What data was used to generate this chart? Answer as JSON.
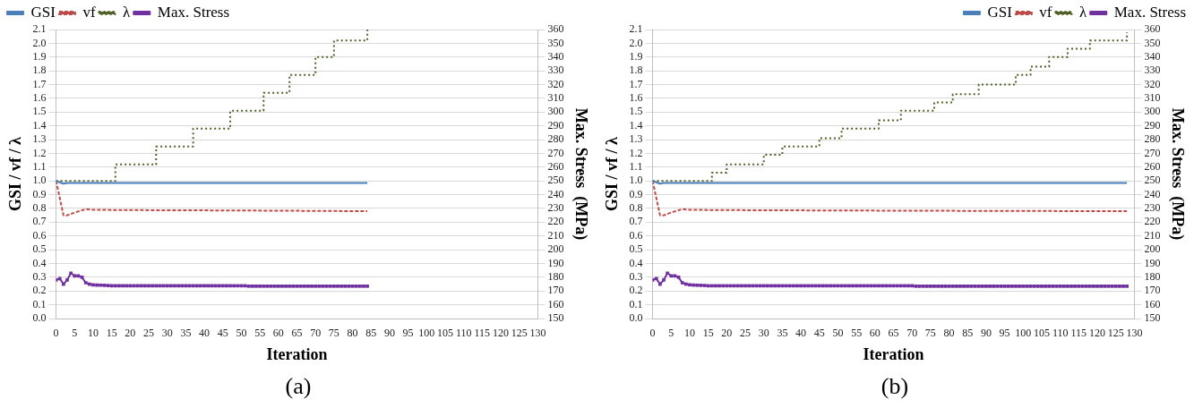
{
  "chart_data": [
    {
      "type": "line",
      "xlabel": "Iteration",
      "ylabel": "GSI / vf / λ",
      "y2label": "Max. Stress  (MPa)",
      "annotations": [
        "(a)"
      ],
      "xlim": [
        0,
        130
      ],
      "xticks": [
        0,
        5,
        10,
        15,
        20,
        25,
        30,
        35,
        40,
        45,
        50,
        55,
        60,
        65,
        70,
        75,
        80,
        85,
        90,
        95,
        100,
        105,
        110,
        115,
        120,
        125,
        130
      ],
      "ylim": [
        0,
        2.1
      ],
      "yticks": [
        {
          "value": 0,
          "label": "0.0"
        },
        0.1,
        0.2,
        0.3,
        0.4,
        0.5,
        0.6,
        0.7,
        0.8,
        0.9,
        {
          "value": 1,
          "label": "1.0"
        },
        1.1,
        1.2,
        1.3,
        1.4,
        1.5,
        1.6,
        1.7,
        1.8,
        1.9,
        {
          "value": 2,
          "label": "2.0"
        },
        2.1
      ],
      "y2lim": [
        150,
        360
      ],
      "y2ticks": [
        150,
        160,
        170,
        180,
        190,
        200,
        210,
        220,
        230,
        240,
        250,
        260,
        270,
        280,
        290,
        300,
        310,
        320,
        330,
        340,
        350,
        360
      ],
      "grid": "y",
      "legend": "top left",
      "series": [
        {
          "name": "GSI",
          "color": "#4a7ebb",
          "line_style": "solid",
          "marker": "none",
          "x": [
            0,
            1,
            2,
            3,
            84
          ],
          "values": [
            1.0,
            0.99,
            0.98,
            0.985,
            0.985
          ]
        },
        {
          "name": "vf",
          "color": "#be4b48",
          "line_style": "dashed",
          "marker": "none",
          "x": [
            0,
            2,
            3,
            5,
            8,
            10,
            20,
            50,
            84
          ],
          "values": [
            1.0,
            0.75,
            0.75,
            0.77,
            0.795,
            0.79,
            0.788,
            0.785,
            0.78
          ]
        },
        {
          "name": "λ",
          "type": "step",
          "color": "#4f6228",
          "line_style": "dotted",
          "marker": "none",
          "x": [
            0,
            16,
            27,
            37,
            47,
            56,
            63,
            70,
            75,
            84
          ],
          "values": [
            1.0,
            1.12,
            1.25,
            1.38,
            1.51,
            1.64,
            1.77,
            1.9,
            2.02,
            2.1
          ]
        },
        {
          "name": "Max. Stress",
          "axis": "y2",
          "color": "#7030a0",
          "line_style": "solid",
          "marker": "square",
          "x": [
            0,
            1,
            2,
            3,
            4,
            5,
            6,
            7,
            8,
            9,
            10,
            11,
            12,
            13,
            14,
            15,
            16,
            17,
            18,
            19,
            20,
            21,
            22,
            23,
            24,
            25,
            26,
            27,
            28,
            29,
            30,
            31,
            32,
            33,
            34,
            35,
            36,
            37,
            38,
            39,
            40,
            41,
            42,
            43,
            44,
            45,
            46,
            47,
            48,
            49,
            50,
            51,
            52,
            53,
            54,
            55,
            56,
            57,
            58,
            59,
            60,
            61,
            62,
            63,
            64,
            65,
            66,
            67,
            68,
            69,
            70,
            71,
            72,
            73,
            74,
            75,
            76,
            77,
            78,
            79,
            80,
            81,
            82,
            83,
            84
          ],
          "values": [
            178,
            179,
            175,
            178,
            183,
            181,
            181,
            180,
            176,
            175,
            174.5,
            174.3,
            174.2,
            174.1,
            174,
            173.8,
            173.8,
            173.8,
            173.8,
            173.8,
            173.8,
            173.8,
            173.8,
            173.8,
            173.8,
            173.8,
            173.8,
            173.8,
            173.8,
            173.8,
            173.8,
            173.8,
            173.8,
            173.8,
            173.8,
            173.8,
            173.8,
            173.8,
            173.8,
            173.8,
            173.8,
            173.8,
            173.8,
            173.8,
            173.8,
            173.8,
            173.8,
            173.8,
            173.8,
            173.8,
            173.8,
            173.8,
            173.5,
            173.5,
            173.5,
            173.5,
            173.5,
            173.5,
            173.5,
            173.5,
            173.5,
            173.5,
            173.5,
            173.5,
            173.5,
            173.5,
            173.5,
            173.5,
            173.5,
            173.5,
            173.5,
            173.5,
            173.5,
            173.5,
            173.5,
            173.5,
            173.5,
            173.5,
            173.5,
            173.5,
            173.5,
            173.5,
            173.5,
            173.5,
            173.5
          ]
        }
      ]
    },
    {
      "type": "line",
      "xlabel": "Iteration",
      "ylabel": "GSI / vf / λ",
      "y2label": "Max. Stress  (MPa)",
      "annotations": [
        "(b)"
      ],
      "xlim": [
        0,
        130
      ],
      "xticks": [
        0,
        5,
        10,
        15,
        20,
        25,
        30,
        35,
        40,
        45,
        50,
        55,
        60,
        65,
        70,
        75,
        80,
        85,
        90,
        95,
        100,
        105,
        110,
        115,
        120,
        125,
        130
      ],
      "ylim": [
        0,
        2.1
      ],
      "yticks": [
        {
          "value": 0,
          "label": "0.0"
        },
        0.1,
        0.2,
        0.3,
        0.4,
        0.5,
        0.6,
        0.7,
        0.8,
        0.9,
        {
          "value": 1,
          "label": "1.0"
        },
        1.1,
        1.2,
        1.3,
        1.4,
        1.5,
        1.6,
        1.7,
        1.8,
        1.9,
        {
          "value": 2,
          "label": "2.0"
        },
        2.1
      ],
      "y2lim": [
        150,
        360
      ],
      "y2ticks": [
        150,
        160,
        170,
        180,
        190,
        200,
        210,
        220,
        230,
        240,
        250,
        260,
        270,
        280,
        290,
        300,
        310,
        320,
        330,
        340,
        350,
        360
      ],
      "grid": "y",
      "legend": "top right",
      "series": [
        {
          "name": "GSI",
          "color": "#4a7ebb",
          "line_style": "solid",
          "marker": "none",
          "x": [
            0,
            1,
            2,
            3,
            128
          ],
          "values": [
            1.0,
            0.99,
            0.98,
            0.985,
            0.985
          ]
        },
        {
          "name": "vf",
          "color": "#be4b48",
          "line_style": "dashed",
          "marker": "none",
          "x": [
            0,
            2,
            3,
            5,
            8,
            10,
            20,
            50,
            90,
            128
          ],
          "values": [
            1.0,
            0.75,
            0.75,
            0.77,
            0.795,
            0.79,
            0.788,
            0.785,
            0.782,
            0.78
          ]
        },
        {
          "name": "λ",
          "type": "step",
          "color": "#4f6228",
          "line_style": "dotted",
          "marker": "none",
          "x": [
            0,
            16,
            20,
            30,
            35,
            45,
            51,
            61,
            67,
            76,
            81,
            88,
            98,
            102,
            107,
            112,
            118,
            128
          ],
          "values": [
            1.0,
            1.06,
            1.12,
            1.19,
            1.25,
            1.31,
            1.38,
            1.44,
            1.51,
            1.57,
            1.63,
            1.7,
            1.77,
            1.83,
            1.9,
            1.96,
            2.02,
            2.08
          ]
        },
        {
          "name": "Max. Stress",
          "axis": "y2",
          "color": "#7030a0",
          "line_style": "solid",
          "marker": "square",
          "x": [
            0,
            1,
            2,
            3,
            4,
            5,
            6,
            7,
            8,
            9,
            10,
            11,
            12,
            13,
            14,
            15,
            16,
            17,
            18,
            19,
            20,
            21,
            22,
            23,
            24,
            25,
            26,
            27,
            28,
            29,
            30,
            31,
            32,
            33,
            34,
            35,
            36,
            37,
            38,
            39,
            40,
            41,
            42,
            43,
            44,
            45,
            46,
            47,
            48,
            49,
            50,
            51,
            52,
            53,
            54,
            55,
            56,
            57,
            58,
            59,
            60,
            61,
            62,
            63,
            64,
            65,
            66,
            67,
            68,
            69,
            70,
            71,
            72,
            73,
            74,
            75,
            76,
            77,
            78,
            79,
            80,
            81,
            82,
            83,
            84,
            85,
            86,
            87,
            88,
            89,
            90,
            91,
            92,
            93,
            94,
            95,
            96,
            97,
            98,
            99,
            100,
            101,
            102,
            103,
            104,
            105,
            106,
            107,
            108,
            109,
            110,
            111,
            112,
            113,
            114,
            115,
            116,
            117,
            118,
            119,
            120,
            121,
            122,
            123,
            124,
            125,
            126,
            127,
            128
          ],
          "values": [
            178,
            179,
            175,
            178,
            183,
            181,
            181,
            180,
            176,
            175,
            174.5,
            174.3,
            174.2,
            174.1,
            174,
            173.8,
            173.8,
            173.8,
            173.8,
            173.8,
            173.8,
            173.8,
            173.8,
            173.8,
            173.8,
            173.8,
            173.8,
            173.8,
            173.8,
            173.8,
            173.8,
            173.8,
            173.8,
            173.8,
            173.8,
            173.8,
            173.8,
            173.8,
            173.8,
            173.8,
            173.8,
            173.8,
            173.8,
            173.8,
            173.8,
            173.8,
            173.8,
            173.8,
            173.8,
            173.8,
            173.8,
            173.8,
            173.8,
            173.8,
            173.8,
            173.8,
            173.8,
            173.8,
            173.8,
            173.8,
            173.8,
            173.8,
            173.8,
            173.8,
            173.8,
            173.8,
            173.8,
            173.8,
            173.8,
            173.8,
            173.8,
            173.5,
            173.5,
            173.5,
            173.5,
            173.5,
            173.5,
            173.5,
            173.5,
            173.5,
            173.5,
            173.5,
            173.5,
            173.5,
            173.5,
            173.5,
            173.5,
            173.5,
            173.5,
            173.5,
            173.5,
            173.5,
            173.5,
            173.5,
            173.5,
            173.5,
            173.5,
            173.5,
            173.5,
            173.5,
            173.5,
            173.5,
            173.5,
            173.5,
            173.5,
            173.5,
            173.5,
            173.5,
            173.5,
            173.5,
            173.5,
            173.5,
            173.5,
            173.5,
            173.5,
            173.5,
            173.5,
            173.5,
            173.5,
            173.5,
            173.5,
            173.5,
            173.5,
            173.5,
            173.5,
            173.5,
            173.5,
            173.5,
            173.5
          ]
        }
      ]
    }
  ]
}
